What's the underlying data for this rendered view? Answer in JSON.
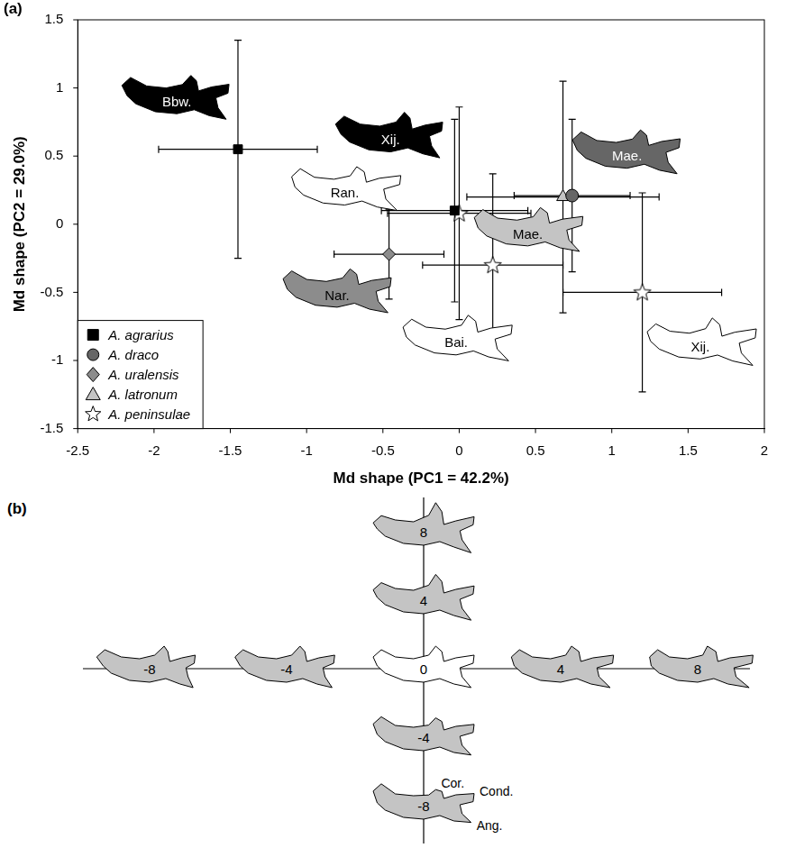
{
  "chart_data": {
    "type": "scatter",
    "panel_label": "(a)",
    "x_label": "Md shape (PC1 = 42.2%)",
    "y_label": "Md shape (PC2 = 29.0%)",
    "xlim": [
      -2.5,
      2
    ],
    "xticks": [
      -2.5,
      -2,
      -1.5,
      -1,
      -0.5,
      0,
      0.5,
      1,
      1.5,
      2
    ],
    "ylim": [
      -1.5,
      1.5
    ],
    "yticks": [
      -1.5,
      -1,
      -0.5,
      0,
      0.5,
      1,
      1.5
    ],
    "grid": false,
    "legend": "lower left",
    "series": [
      {
        "name": "A. agrarius",
        "color": "#000000",
        "marker": "square",
        "x": [
          -1.45,
          -0.03
        ],
        "y": [
          0.55,
          0.1
        ],
        "x_err": [
          0.52,
          0.48
        ],
        "y_err": [
          0.8,
          0.67
        ],
        "point_labels": [
          "Bbw.",
          "Xij."
        ]
      },
      {
        "name": "A. draco",
        "color": "#666666",
        "marker": "circle",
        "x": [
          0.74
        ],
        "y": [
          0.21
        ],
        "x_err": [
          0.38
        ],
        "y_err": [
          0.56
        ],
        "point_labels": [
          "Mae."
        ]
      },
      {
        "name": "A. uralensis",
        "color": "#8c8c8c",
        "marker": "diamond",
        "x": [
          -0.46
        ],
        "y": [
          -0.22
        ],
        "x_err": [
          0.36
        ],
        "y_err": [
          0.33
        ],
        "point_labels": [
          "Nar."
        ]
      },
      {
        "name": "A. latronum",
        "color": "#c4c4c4",
        "marker": "triangle",
        "x": [
          0.68
        ],
        "y": [
          0.2
        ],
        "x_err": [
          0.63
        ],
        "y_err": [
          0.85
        ],
        "point_labels": [
          "Mae."
        ]
      },
      {
        "name": "A. peninsulae",
        "color": "#ffffff",
        "marker": "star",
        "x": [
          0.0,
          0.22,
          1.2
        ],
        "y": [
          0.08,
          -0.3,
          -0.5
        ],
        "x_err": [
          0.47,
          0.46,
          0.52
        ],
        "y_err": [
          0.78,
          0.67,
          0.73
        ],
        "point_labels": [
          "Ran.",
          "Bai.",
          "Xij."
        ]
      }
    ]
  },
  "shape_axes": {
    "panel_label": "(b)",
    "pc1_scores": [
      -8,
      -4,
      0,
      4,
      8
    ],
    "pc2_scores": [
      8,
      4,
      0,
      -4,
      -8
    ],
    "landmarks": [
      "Cor.",
      "Cond.",
      "Ang."
    ]
  }
}
